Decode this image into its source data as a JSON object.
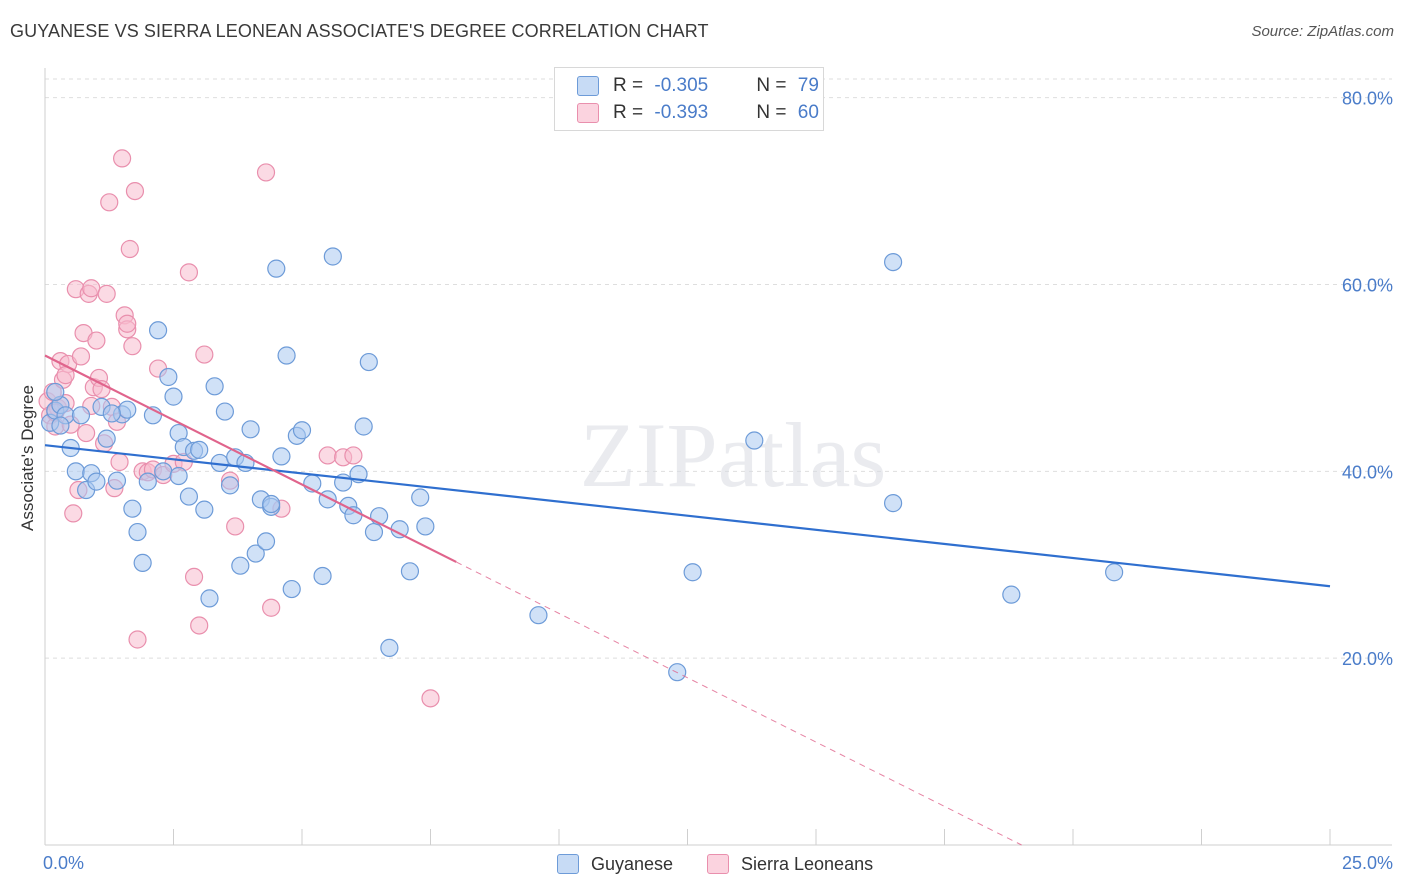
{
  "title": "GUYANESE VS SIERRA LEONEAN ASSOCIATE'S DEGREE CORRELATION CHART",
  "source": "Source: ZipAtlas.com",
  "watermark": "ZIPatlas",
  "colors": {
    "guyanese_fill": "#a9c8f0",
    "guyanese_stroke": "#6d9bd8",
    "guyanese_line": "#2f6fcf",
    "sierra_fill": "#f7bccd",
    "sierra_stroke": "#e98fad",
    "sierra_line": "#e0648c",
    "grid": "#dedede",
    "axis_text": "#4a7cc9"
  },
  "legend": {
    "r_label": "R = ",
    "n_label": "N = ",
    "guyanese": {
      "r": "-0.305",
      "n": "79"
    },
    "sierra": {
      "r": "-0.393",
      "n": "60"
    }
  },
  "chart_data": {
    "type": "scatter",
    "title": "GUYANESE VS SIERRA LEONEAN ASSOCIATE'S DEGREE CORRELATION CHART",
    "xlabel": "",
    "ylabel": "Associate's Degree",
    "xlim": [
      0,
      25
    ],
    "ylim": [
      0,
      82
    ],
    "x_tick_labels": [
      "0.0%",
      "25.0%"
    ],
    "y_ticks": [
      20,
      40,
      60,
      80
    ],
    "y_tick_labels": [
      "20.0%",
      "40.0%",
      "60.0%",
      "80.0%"
    ],
    "grid": true,
    "legend_position": "top-center",
    "series": [
      {
        "name": "Guyanese",
        "r": -0.305,
        "n": 79,
        "trend": {
          "x": [
            0,
            25
          ],
          "y": [
            42.8,
            27.7
          ]
        },
        "points": [
          [
            0.1,
            45.2
          ],
          [
            0.2,
            46.5
          ],
          [
            0.3,
            47.1
          ],
          [
            0.4,
            46.0
          ],
          [
            0.5,
            42.5
          ],
          [
            0.6,
            40.0
          ],
          [
            0.8,
            38.0
          ],
          [
            0.9,
            39.8
          ],
          [
            1.0,
            38.9
          ],
          [
            1.1,
            46.9
          ],
          [
            1.2,
            43.5
          ],
          [
            1.4,
            39.0
          ],
          [
            1.5,
            46.1
          ],
          [
            1.6,
            46.6
          ],
          [
            1.7,
            36.0
          ],
          [
            1.8,
            33.5
          ],
          [
            1.9,
            30.2
          ],
          [
            2.0,
            38.9
          ],
          [
            2.1,
            46.0
          ],
          [
            2.2,
            55.1
          ],
          [
            2.3,
            40.0
          ],
          [
            2.4,
            50.1
          ],
          [
            2.5,
            48.0
          ],
          [
            2.6,
            44.1
          ],
          [
            2.7,
            42.6
          ],
          [
            2.8,
            37.3
          ],
          [
            2.9,
            42.2
          ],
          [
            3.0,
            42.3
          ],
          [
            3.1,
            35.9
          ],
          [
            3.2,
            26.4
          ],
          [
            3.3,
            49.1
          ],
          [
            3.4,
            40.9
          ],
          [
            3.5,
            46.4
          ],
          [
            3.6,
            38.5
          ],
          [
            3.7,
            41.5
          ],
          [
            3.8,
            29.9
          ],
          [
            3.9,
            40.9
          ],
          [
            4.0,
            44.5
          ],
          [
            4.1,
            31.2
          ],
          [
            4.2,
            37.0
          ],
          [
            4.3,
            32.5
          ],
          [
            4.4,
            36.2
          ],
          [
            4.5,
            61.7
          ],
          [
            4.6,
            41.6
          ],
          [
            4.7,
            52.4
          ],
          [
            4.8,
            27.4
          ],
          [
            4.9,
            43.8
          ],
          [
            5.0,
            44.4
          ],
          [
            5.2,
            38.7
          ],
          [
            5.4,
            28.8
          ],
          [
            5.5,
            37.0
          ],
          [
            5.6,
            63.0
          ],
          [
            5.8,
            38.8
          ],
          [
            5.9,
            36.3
          ],
          [
            6.0,
            35.3
          ],
          [
            6.1,
            39.7
          ],
          [
            6.2,
            44.8
          ],
          [
            6.3,
            51.7
          ],
          [
            6.4,
            33.5
          ],
          [
            6.5,
            35.2
          ],
          [
            6.7,
            21.1
          ],
          [
            6.9,
            33.8
          ],
          [
            7.1,
            29.3
          ],
          [
            7.3,
            37.2
          ],
          [
            7.4,
            34.1
          ],
          [
            9.6,
            24.6
          ],
          [
            12.3,
            18.5
          ],
          [
            12.6,
            29.2
          ],
          [
            13.8,
            43.3
          ],
          [
            16.5,
            36.6
          ],
          [
            16.5,
            62.4
          ],
          [
            18.8,
            26.8
          ],
          [
            20.8,
            29.2
          ],
          [
            0.3,
            44.9
          ],
          [
            0.7,
            46.0
          ],
          [
            1.3,
            46.2
          ],
          [
            2.6,
            39.5
          ],
          [
            4.4,
            36.5
          ],
          [
            0.2,
            48.5
          ]
        ]
      },
      {
        "name": "Sierra Leoneans",
        "r": -0.393,
        "n": 60,
        "trend": {
          "x": [
            0,
            8.0
          ],
          "y": [
            52.4,
            30.3
          ]
        },
        "trend_extension": {
          "x": [
            8.0,
            19.0
          ],
          "y": [
            30.3,
            0
          ]
        },
        "points": [
          [
            0.05,
            47.5
          ],
          [
            0.1,
            46.0
          ],
          [
            0.15,
            48.5
          ],
          [
            0.2,
            44.8
          ],
          [
            0.25,
            46.8
          ],
          [
            0.3,
            51.8
          ],
          [
            0.35,
            49.8
          ],
          [
            0.4,
            47.3
          ],
          [
            0.45,
            51.5
          ],
          [
            0.5,
            45.0
          ],
          [
            0.55,
            35.5
          ],
          [
            0.6,
            59.5
          ],
          [
            0.65,
            38.0
          ],
          [
            0.7,
            52.3
          ],
          [
            0.75,
            54.8
          ],
          [
            0.8,
            44.1
          ],
          [
            0.85,
            59.0
          ],
          [
            0.9,
            59.6
          ],
          [
            0.95,
            49.0
          ],
          [
            1.0,
            54.0
          ],
          [
            1.05,
            50.0
          ],
          [
            1.1,
            48.8
          ],
          [
            1.15,
            43.0
          ],
          [
            1.2,
            59.0
          ],
          [
            1.25,
            68.8
          ],
          [
            1.3,
            46.9
          ],
          [
            1.35,
            38.2
          ],
          [
            1.4,
            45.3
          ],
          [
            1.45,
            41.0
          ],
          [
            1.5,
            73.5
          ],
          [
            1.55,
            56.7
          ],
          [
            1.6,
            55.2
          ],
          [
            1.65,
            63.8
          ],
          [
            1.7,
            53.4
          ],
          [
            1.75,
            70.0
          ],
          [
            1.8,
            22.0
          ],
          [
            1.9,
            40.0
          ],
          [
            2.0,
            39.9
          ],
          [
            2.1,
            40.2
          ],
          [
            2.2,
            51.0
          ],
          [
            2.3,
            39.6
          ],
          [
            2.5,
            40.8
          ],
          [
            2.7,
            41.0
          ],
          [
            2.8,
            61.3
          ],
          [
            2.9,
            28.7
          ],
          [
            3.0,
            23.5
          ],
          [
            3.1,
            52.5
          ],
          [
            3.6,
            39.0
          ],
          [
            3.7,
            34.1
          ],
          [
            4.3,
            72.0
          ],
          [
            4.4,
            25.4
          ],
          [
            4.6,
            36.0
          ],
          [
            5.5,
            41.7
          ],
          [
            5.8,
            41.5
          ],
          [
            6.0,
            41.7
          ],
          [
            7.5,
            15.7
          ],
          [
            0.4,
            50.3
          ],
          [
            0.9,
            47.0
          ],
          [
            1.6,
            55.8
          ],
          [
            0.2,
            46.3
          ]
        ]
      }
    ]
  }
}
